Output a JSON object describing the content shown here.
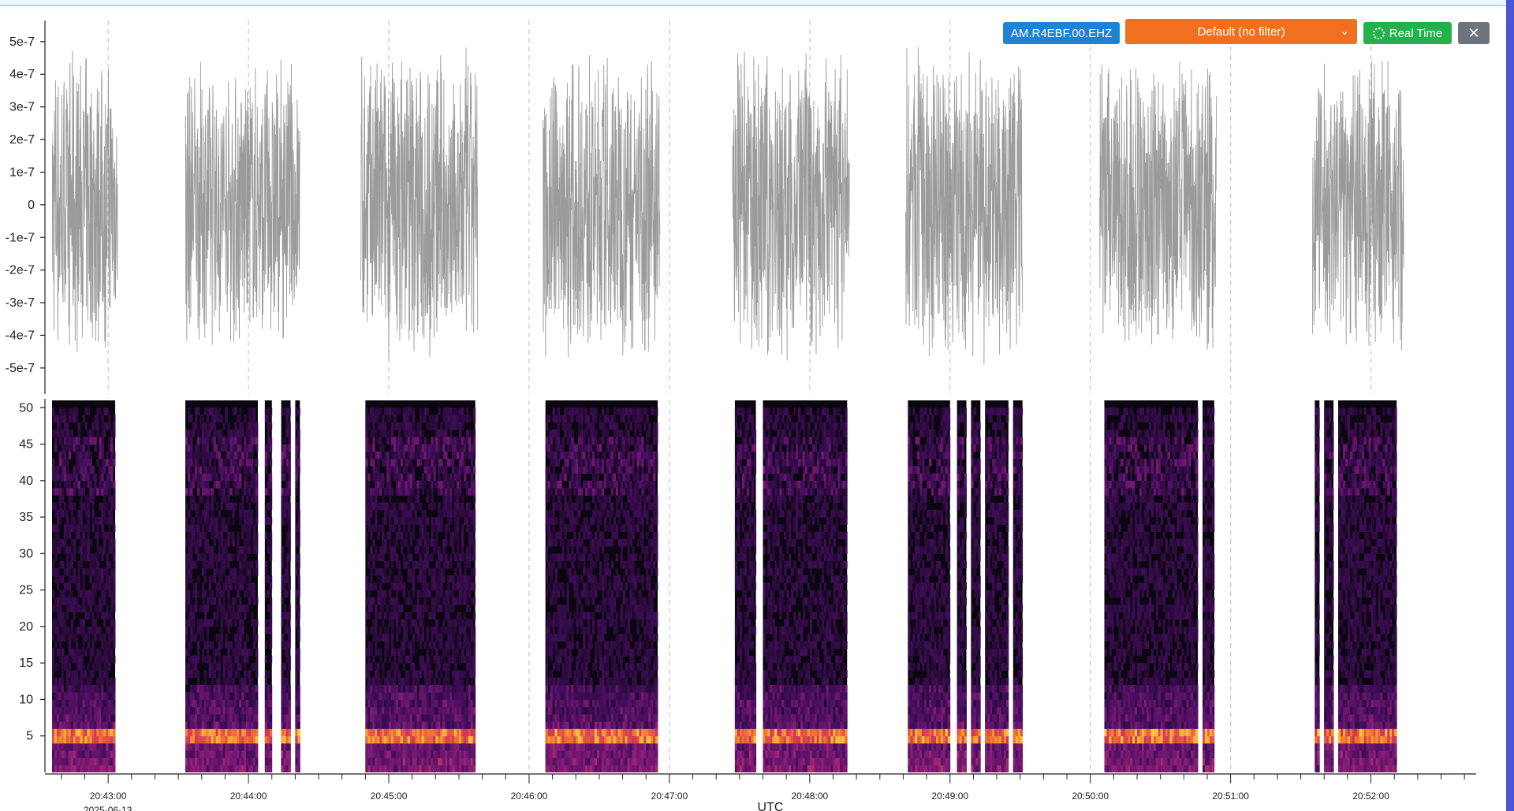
{
  "controls": {
    "station": "AM.R4EBF.00.EHZ",
    "filter": "Default (no filter)",
    "realtime": "Real Time",
    "close": "✕"
  },
  "colors": {
    "trace": "#8a8a8a",
    "spec_background": "#0b0710",
    "station_button": "#1f82d2",
    "filter_select": "#f07020",
    "realtime_button": "#24b04a",
    "close_button": "#6c757d"
  },
  "chart_data": [
    {
      "type": "line",
      "panel": "waveform",
      "ylim": [
        -5.8e-07,
        5.6e-07
      ],
      "yticks": [
        {
          "v": 5e-07,
          "label": "5e-7"
        },
        {
          "v": 4e-07,
          "label": "4e-7"
        },
        {
          "v": 3e-07,
          "label": "3e-7"
        },
        {
          "v": 2e-07,
          "label": "2e-7"
        },
        {
          "v": 1e-07,
          "label": "1e-7"
        },
        {
          "v": 0,
          "label": "0"
        },
        {
          "v": -1e-07,
          "label": "-1e-7"
        },
        {
          "v": -2e-07,
          "label": "-2e-7"
        },
        {
          "v": -3e-07,
          "label": "-3e-7"
        },
        {
          "v": -4e-07,
          "label": "-4e-7"
        },
        {
          "v": -5e-07,
          "label": "-5e-7"
        }
      ],
      "segments": [
        {
          "start": "20:42:36",
          "end": "20:43:04",
          "amplitude": 4.8e-07
        },
        {
          "start": "20:43:33",
          "end": "20:44:22",
          "amplitude": 4.5e-07
        },
        {
          "start": "20:44:48",
          "end": "20:45:38",
          "amplitude": 5e-07
        },
        {
          "start": "20:46:06",
          "end": "20:46:56",
          "amplitude": 4.8e-07
        },
        {
          "start": "20:47:27",
          "end": "20:48:17",
          "amplitude": 4.9e-07
        },
        {
          "start": "20:48:41",
          "end": "20:49:31",
          "amplitude": 5e-07
        },
        {
          "start": "20:50:04",
          "end": "20:50:54",
          "amplitude": 4.8e-07
        },
        {
          "start": "20:51:35",
          "end": "20:52:14",
          "amplitude": 4.9e-07
        }
      ]
    },
    {
      "type": "heatmap",
      "panel": "spectrogram",
      "ylim": [
        0,
        51
      ],
      "yticks": [
        50,
        45,
        40,
        35,
        30,
        25,
        20,
        15,
        10,
        5
      ],
      "blocks": [
        {
          "start": "20:42:36",
          "end": "20:43:03"
        },
        {
          "start": "20:43:33",
          "end": "20:44:04"
        },
        {
          "start": "20:44:07",
          "end": "20:44:10"
        },
        {
          "start": "20:44:14",
          "end": "20:44:18"
        },
        {
          "start": "20:44:20",
          "end": "20:44:22"
        },
        {
          "start": "20:44:50",
          "end": "20:45:37"
        },
        {
          "start": "20:46:07",
          "end": "20:46:55"
        },
        {
          "start": "20:47:28",
          "end": "20:47:37"
        },
        {
          "start": "20:47:40",
          "end": "20:48:16"
        },
        {
          "start": "20:48:42",
          "end": "20:49:00"
        },
        {
          "start": "20:49:03",
          "end": "20:49:07"
        },
        {
          "start": "20:49:09",
          "end": "20:49:13"
        },
        {
          "start": "20:49:15",
          "end": "20:49:25"
        },
        {
          "start": "20:49:27",
          "end": "20:49:31"
        },
        {
          "start": "20:50:06",
          "end": "20:50:46"
        },
        {
          "start": "20:50:48",
          "end": "20:50:53"
        },
        {
          "start": "20:51:36",
          "end": "20:51:38"
        },
        {
          "start": "20:51:40",
          "end": "20:51:44"
        },
        {
          "start": "20:51:46",
          "end": "20:52:11"
        }
      ]
    }
  ],
  "x_axis": {
    "range": [
      "20:42:36",
      "20:52:45"
    ],
    "ticks": [
      "20:43:00",
      "20:44:00",
      "20:45:00",
      "20:46:00",
      "20:47:00",
      "20:48:00",
      "20:49:00",
      "20:50:00",
      "20:51:00",
      "20:52:00"
    ],
    "date_label": "2025-06-13",
    "axis_label": "UTC"
  }
}
